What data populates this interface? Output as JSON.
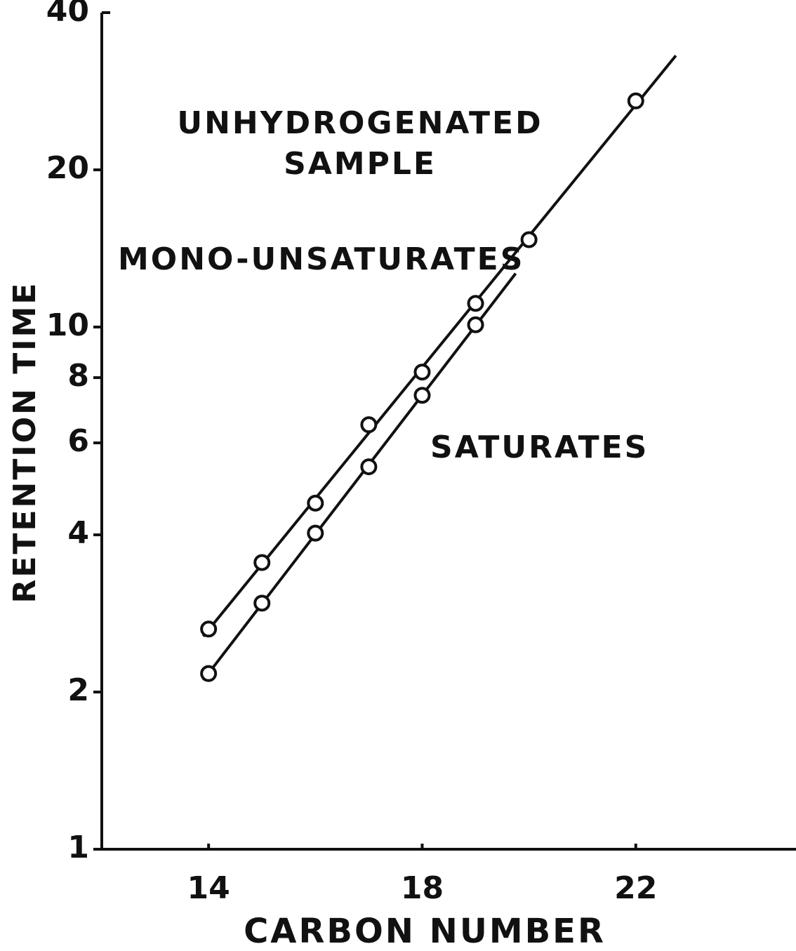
{
  "chart_data": {
    "type": "line",
    "log_y": true,
    "xlabel": "CARBON NUMBER",
    "ylabel": "RETENTION TIME",
    "annotations": [
      "UNHYDROGENATED",
      "SAMPLE"
    ],
    "xlim": [
      12,
      25
    ],
    "xticks": [
      14,
      18,
      22
    ],
    "ylim": [
      1,
      40
    ],
    "yticks": [
      1,
      2,
      4,
      6,
      8,
      10,
      20,
      40
    ],
    "series": [
      {
        "name": "MONO-UNSATURATES",
        "color": "#111111",
        "x": [
          14,
          15,
          16,
          17,
          18,
          19,
          20,
          22
        ],
        "values": [
          2.64,
          3.54,
          4.6,
          6.5,
          8.2,
          11.1,
          14.7,
          27.1
        ]
      },
      {
        "name": "SATURATES",
        "color": "#111111",
        "x": [
          14,
          15,
          16,
          17,
          18,
          19
        ],
        "values": [
          2.17,
          2.96,
          4.03,
          5.4,
          7.4,
          10.1
        ]
      }
    ]
  }
}
